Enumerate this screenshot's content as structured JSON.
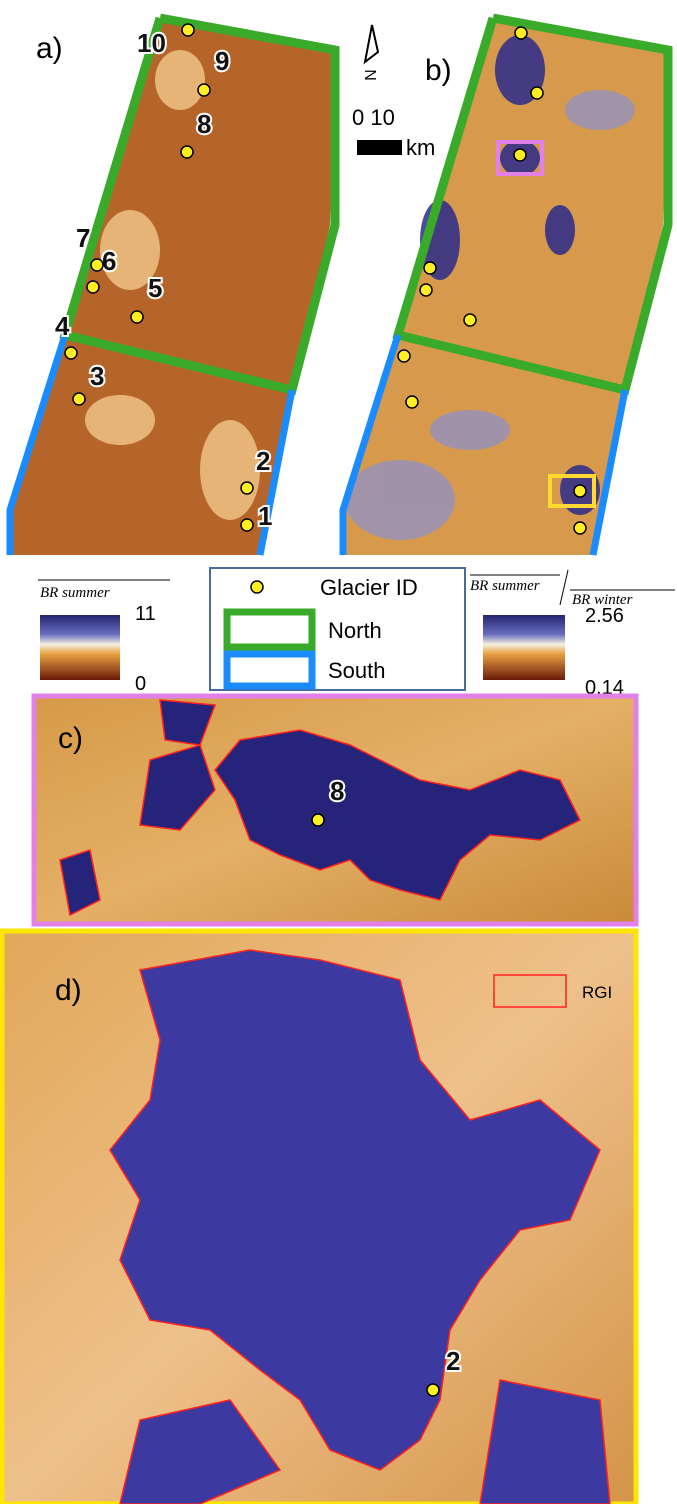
{
  "panels": {
    "a": "a)",
    "b": "b)",
    "c": "c)",
    "d": "d)"
  },
  "glacier_ids": [
    "1",
    "2",
    "3",
    "4",
    "5",
    "6",
    "7",
    "8",
    "9",
    "10"
  ],
  "north_arrow": "N",
  "scale_bar": {
    "label": "0 10",
    "unit": "km"
  },
  "colorbar_summer": {
    "title": "BR summer",
    "max": "11",
    "min": "0"
  },
  "legend": {
    "glacier": "Glacier ID",
    "north": "North",
    "south": "South"
  },
  "colorbar_ratio": {
    "numerator": "BR summer",
    "denominator": "BR winter",
    "max": "2.56",
    "min": "0.14"
  },
  "panel_c_id": "8",
  "panel_d_id": "2",
  "rgi": "RGI"
}
